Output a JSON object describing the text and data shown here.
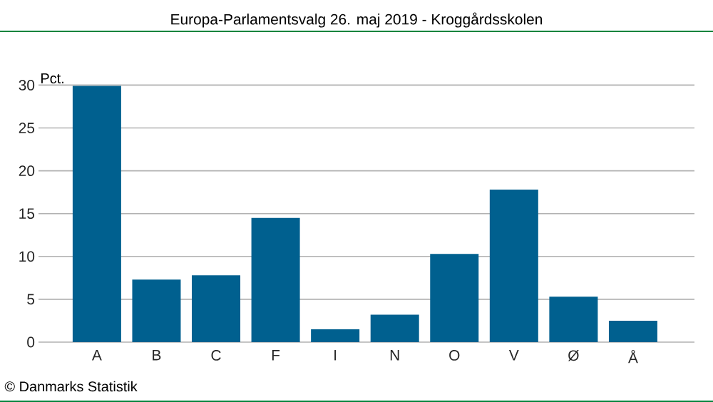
{
  "chart_data": {
    "type": "bar",
    "title": "Europa-Parlamentsvalg 26. maj 2019 - Kroggårdsskolen",
    "ylabel": "Pct.",
    "categories": [
      "A",
      "B",
      "C",
      "F",
      "I",
      "N",
      "O",
      "V",
      "Ø",
      "Å"
    ],
    "values": [
      29.9,
      7.3,
      7.8,
      14.5,
      1.5,
      3.2,
      10.3,
      17.8,
      5.3,
      2.5
    ],
    "color": "#00608f",
    "ylim": [
      0,
      30
    ],
    "yticks": [
      0,
      5,
      10,
      15,
      20,
      25,
      30
    ],
    "grid": "y",
    "annotations": [
      "© Danmarks Statistik"
    ]
  }
}
